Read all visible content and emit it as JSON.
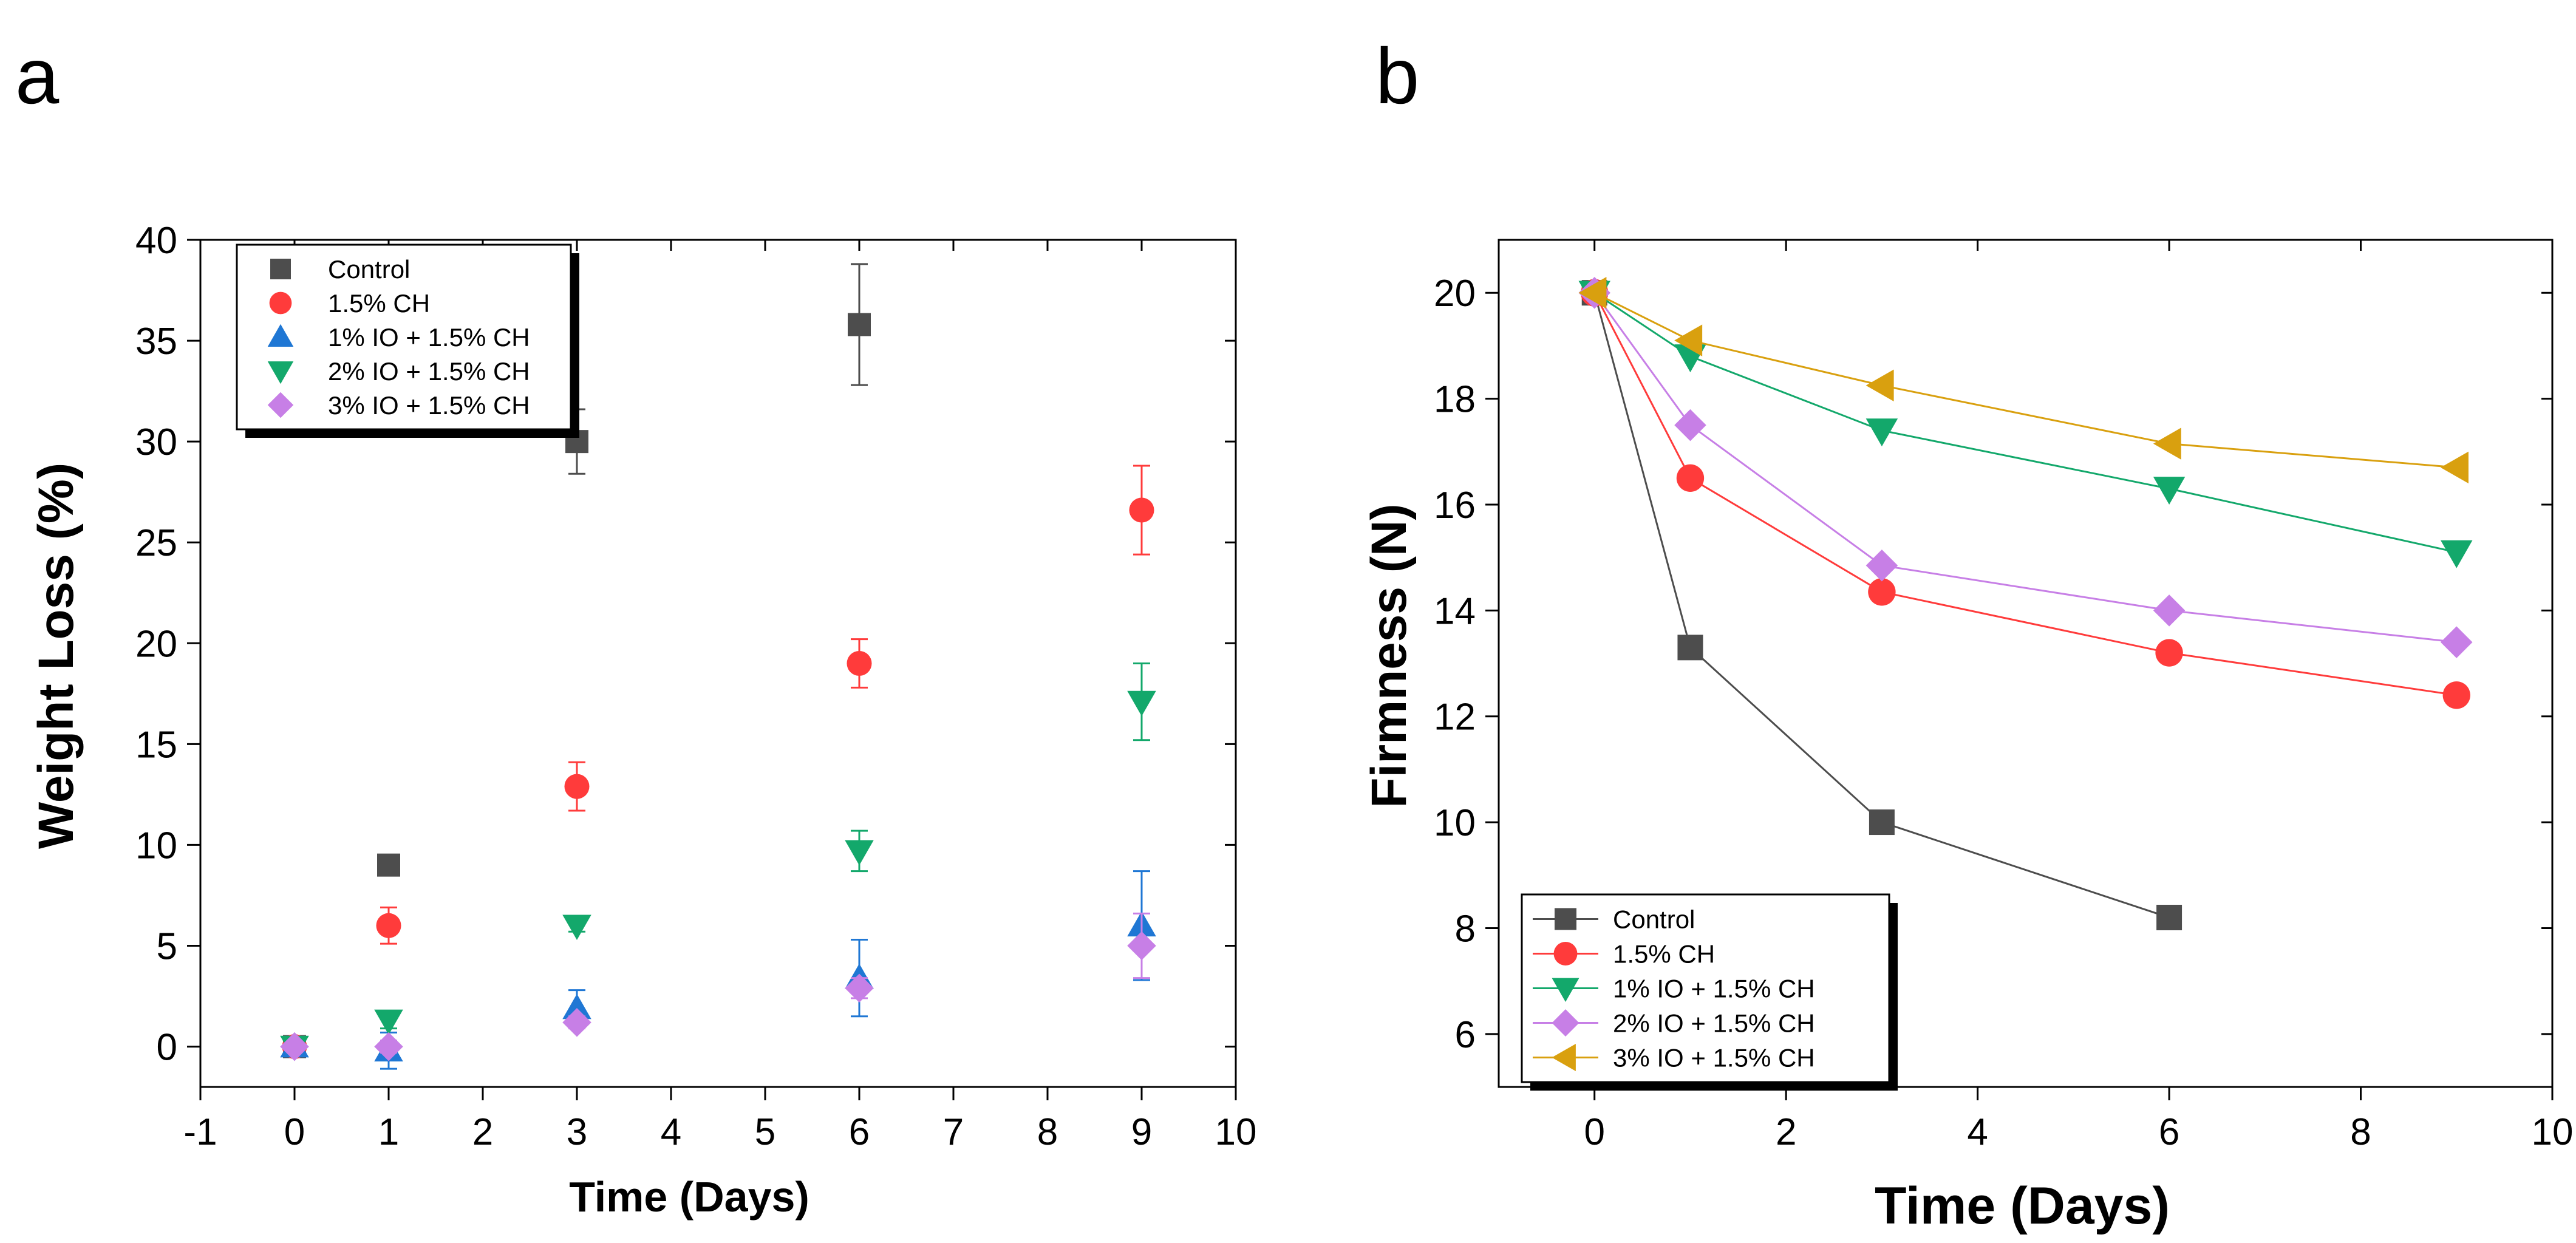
{
  "chart_data": [
    {
      "panel": "a",
      "type": "scatter",
      "title": "",
      "xlabel": "Time (Days)",
      "ylabel": "Weight Loss (%)",
      "xlim": [
        -1,
        10
      ],
      "ylim": [
        -2,
        40
      ],
      "xticks": [
        -1,
        0,
        1,
        2,
        3,
        4,
        5,
        6,
        7,
        8,
        9,
        10
      ],
      "yticks": [
        0,
        5,
        10,
        15,
        20,
        25,
        30,
        35,
        40
      ],
      "legend_position": "top-left",
      "lines": false,
      "series": [
        {
          "name": "Control",
          "color": "#4d4d4d",
          "marker": "square",
          "x": [
            0,
            1,
            3,
            6
          ],
          "y": [
            0,
            9,
            30,
            35.8
          ],
          "err": [
            0,
            0,
            1.6,
            3.0
          ]
        },
        {
          "name": "1.5% CH",
          "color": "#ff3b3b",
          "marker": "circle",
          "x": [
            0,
            1,
            3,
            6,
            9
          ],
          "y": [
            0,
            6,
            12.9,
            19,
            26.6
          ],
          "err": [
            0,
            0.9,
            1.2,
            1.2,
            2.2
          ]
        },
        {
          "name": "1% IO + 1.5% CH",
          "color": "#1f77d4",
          "marker": "triangle-up",
          "x": [
            0,
            1,
            3,
            6,
            9
          ],
          "y": [
            0,
            -0.2,
            1.9,
            3.4,
            6
          ],
          "err": [
            0,
            0.9,
            0.9,
            1.9,
            2.7
          ]
        },
        {
          "name": "2% IO + 1.5% CH",
          "color": "#13a86b",
          "marker": "triangle-down",
          "x": [
            0,
            1,
            3,
            6,
            9
          ],
          "y": [
            0,
            1.3,
            6,
            9.7,
            17.1
          ],
          "err": [
            0,
            0.4,
            0.3,
            1.0,
            1.9
          ]
        },
        {
          "name": "3% IO + 1.5% CH",
          "color": "#c77fe6",
          "marker": "diamond",
          "x": [
            0,
            1,
            3,
            6,
            9
          ],
          "y": [
            0,
            0,
            1.2,
            2.9,
            5
          ],
          "err": [
            0,
            0.3,
            0.3,
            0.5,
            1.6
          ]
        }
      ]
    },
    {
      "panel": "b",
      "type": "line",
      "title": "",
      "xlabel": "Time (Days)",
      "ylabel": "Firmness (N)",
      "xlim": [
        -1,
        10
      ],
      "ylim": [
        5,
        21
      ],
      "xticks": [
        0,
        2,
        4,
        6,
        8,
        10
      ],
      "yticks": [
        6,
        8,
        10,
        12,
        14,
        16,
        18,
        20
      ],
      "legend_position": "bottom-left",
      "lines": true,
      "series": [
        {
          "name": "Control",
          "color": "#4d4d4d",
          "marker": "square",
          "x": [
            0,
            1,
            3,
            6
          ],
          "y": [
            20,
            13.3,
            10,
            8.2
          ]
        },
        {
          "name": "1.5% CH",
          "color": "#ff3b3b",
          "marker": "circle",
          "x": [
            0,
            1,
            3,
            6,
            9
          ],
          "y": [
            20,
            16.5,
            14.35,
            13.2,
            12.4
          ]
        },
        {
          "name": "1% IO + 1.5% CH",
          "color": "#13a86b",
          "marker": "triangle-down",
          "x": [
            0,
            1,
            3,
            6,
            9
          ],
          "y": [
            20,
            18.8,
            17.4,
            16.3,
            15.1
          ]
        },
        {
          "name": "2% IO + 1.5% CH",
          "color": "#c77fe6",
          "marker": "diamond",
          "x": [
            0,
            1,
            3,
            6,
            9
          ],
          "y": [
            20,
            17.5,
            14.85,
            14,
            13.4
          ]
        },
        {
          "name": "3% IO + 1.5% CH",
          "color": "#d9a00f",
          "marker": "triangle-left",
          "x": [
            0,
            1,
            3,
            6,
            9
          ],
          "y": [
            20,
            19.1,
            18.25,
            17.15,
            16.7
          ]
        }
      ]
    }
  ]
}
